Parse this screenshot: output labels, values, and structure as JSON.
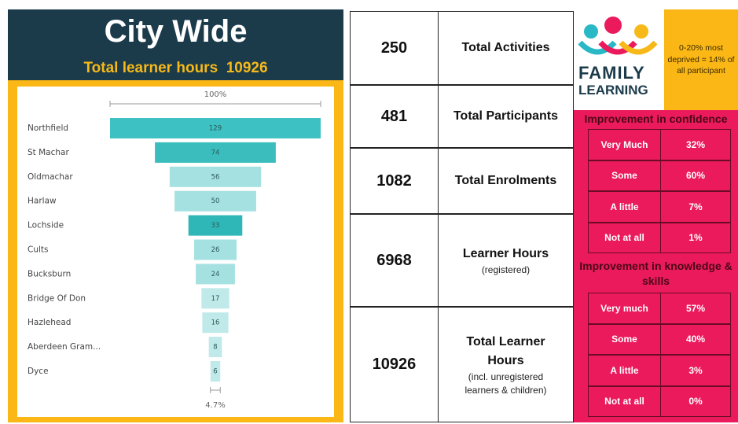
{
  "header": {
    "title": "City Wide",
    "subtitle": "Total learner hours  10926"
  },
  "funnel": {
    "top_label": "100%",
    "bottom_label": "4.7%",
    "categories": [
      "Northfield",
      "St Machar",
      "Oldmachar",
      "Harlaw",
      "Lochside",
      "Cults",
      "Bucksburn",
      "Bridge Of Don",
      "Hazlehead",
      "Aberdeen Gram...",
      "Dyce"
    ],
    "values": [
      129,
      74,
      56,
      50,
      33,
      26,
      24,
      17,
      16,
      8,
      6
    ],
    "colors": [
      "#3ec1c3",
      "#3bbdbd",
      "#a6e1e1",
      "#a6e1e1",
      "#2fb6b6",
      "#a6e1e1",
      "#a6e1e1",
      "#c0e9e9",
      "#c0e9e9",
      "#c0e9e9",
      "#c0e9e9"
    ]
  },
  "stats": [
    {
      "value": 250,
      "label": "Total Activities"
    },
    {
      "value": 481,
      "label": "Total Participants"
    },
    {
      "value": 1082,
      "label": "Total Enrolments"
    },
    {
      "value": 6968,
      "label": "Learner Hours",
      "note": "(registered)"
    },
    {
      "value": 10926,
      "label": "Total Learner Hours",
      "note": "(incl. unregistered learners & children)"
    }
  ],
  "logo": {
    "line1": "FAMILY",
    "line2": "LEARNING"
  },
  "deprived_note": "0-20% most deprived = 14% of all participant",
  "confidence": {
    "title": "Improvement in confidence",
    "rows": [
      [
        "Very Much",
        "32%"
      ],
      [
        "Some",
        "60%"
      ],
      [
        "A little",
        "7%"
      ],
      [
        "Not at all",
        "1%"
      ]
    ]
  },
  "knowledge": {
    "title": "Improvement in knowledge & skills",
    "rows": [
      [
        "Very much",
        "57%"
      ],
      [
        "Some",
        "40%"
      ],
      [
        "A little",
        "3%"
      ],
      [
        "Not at all",
        "0%"
      ]
    ]
  }
}
